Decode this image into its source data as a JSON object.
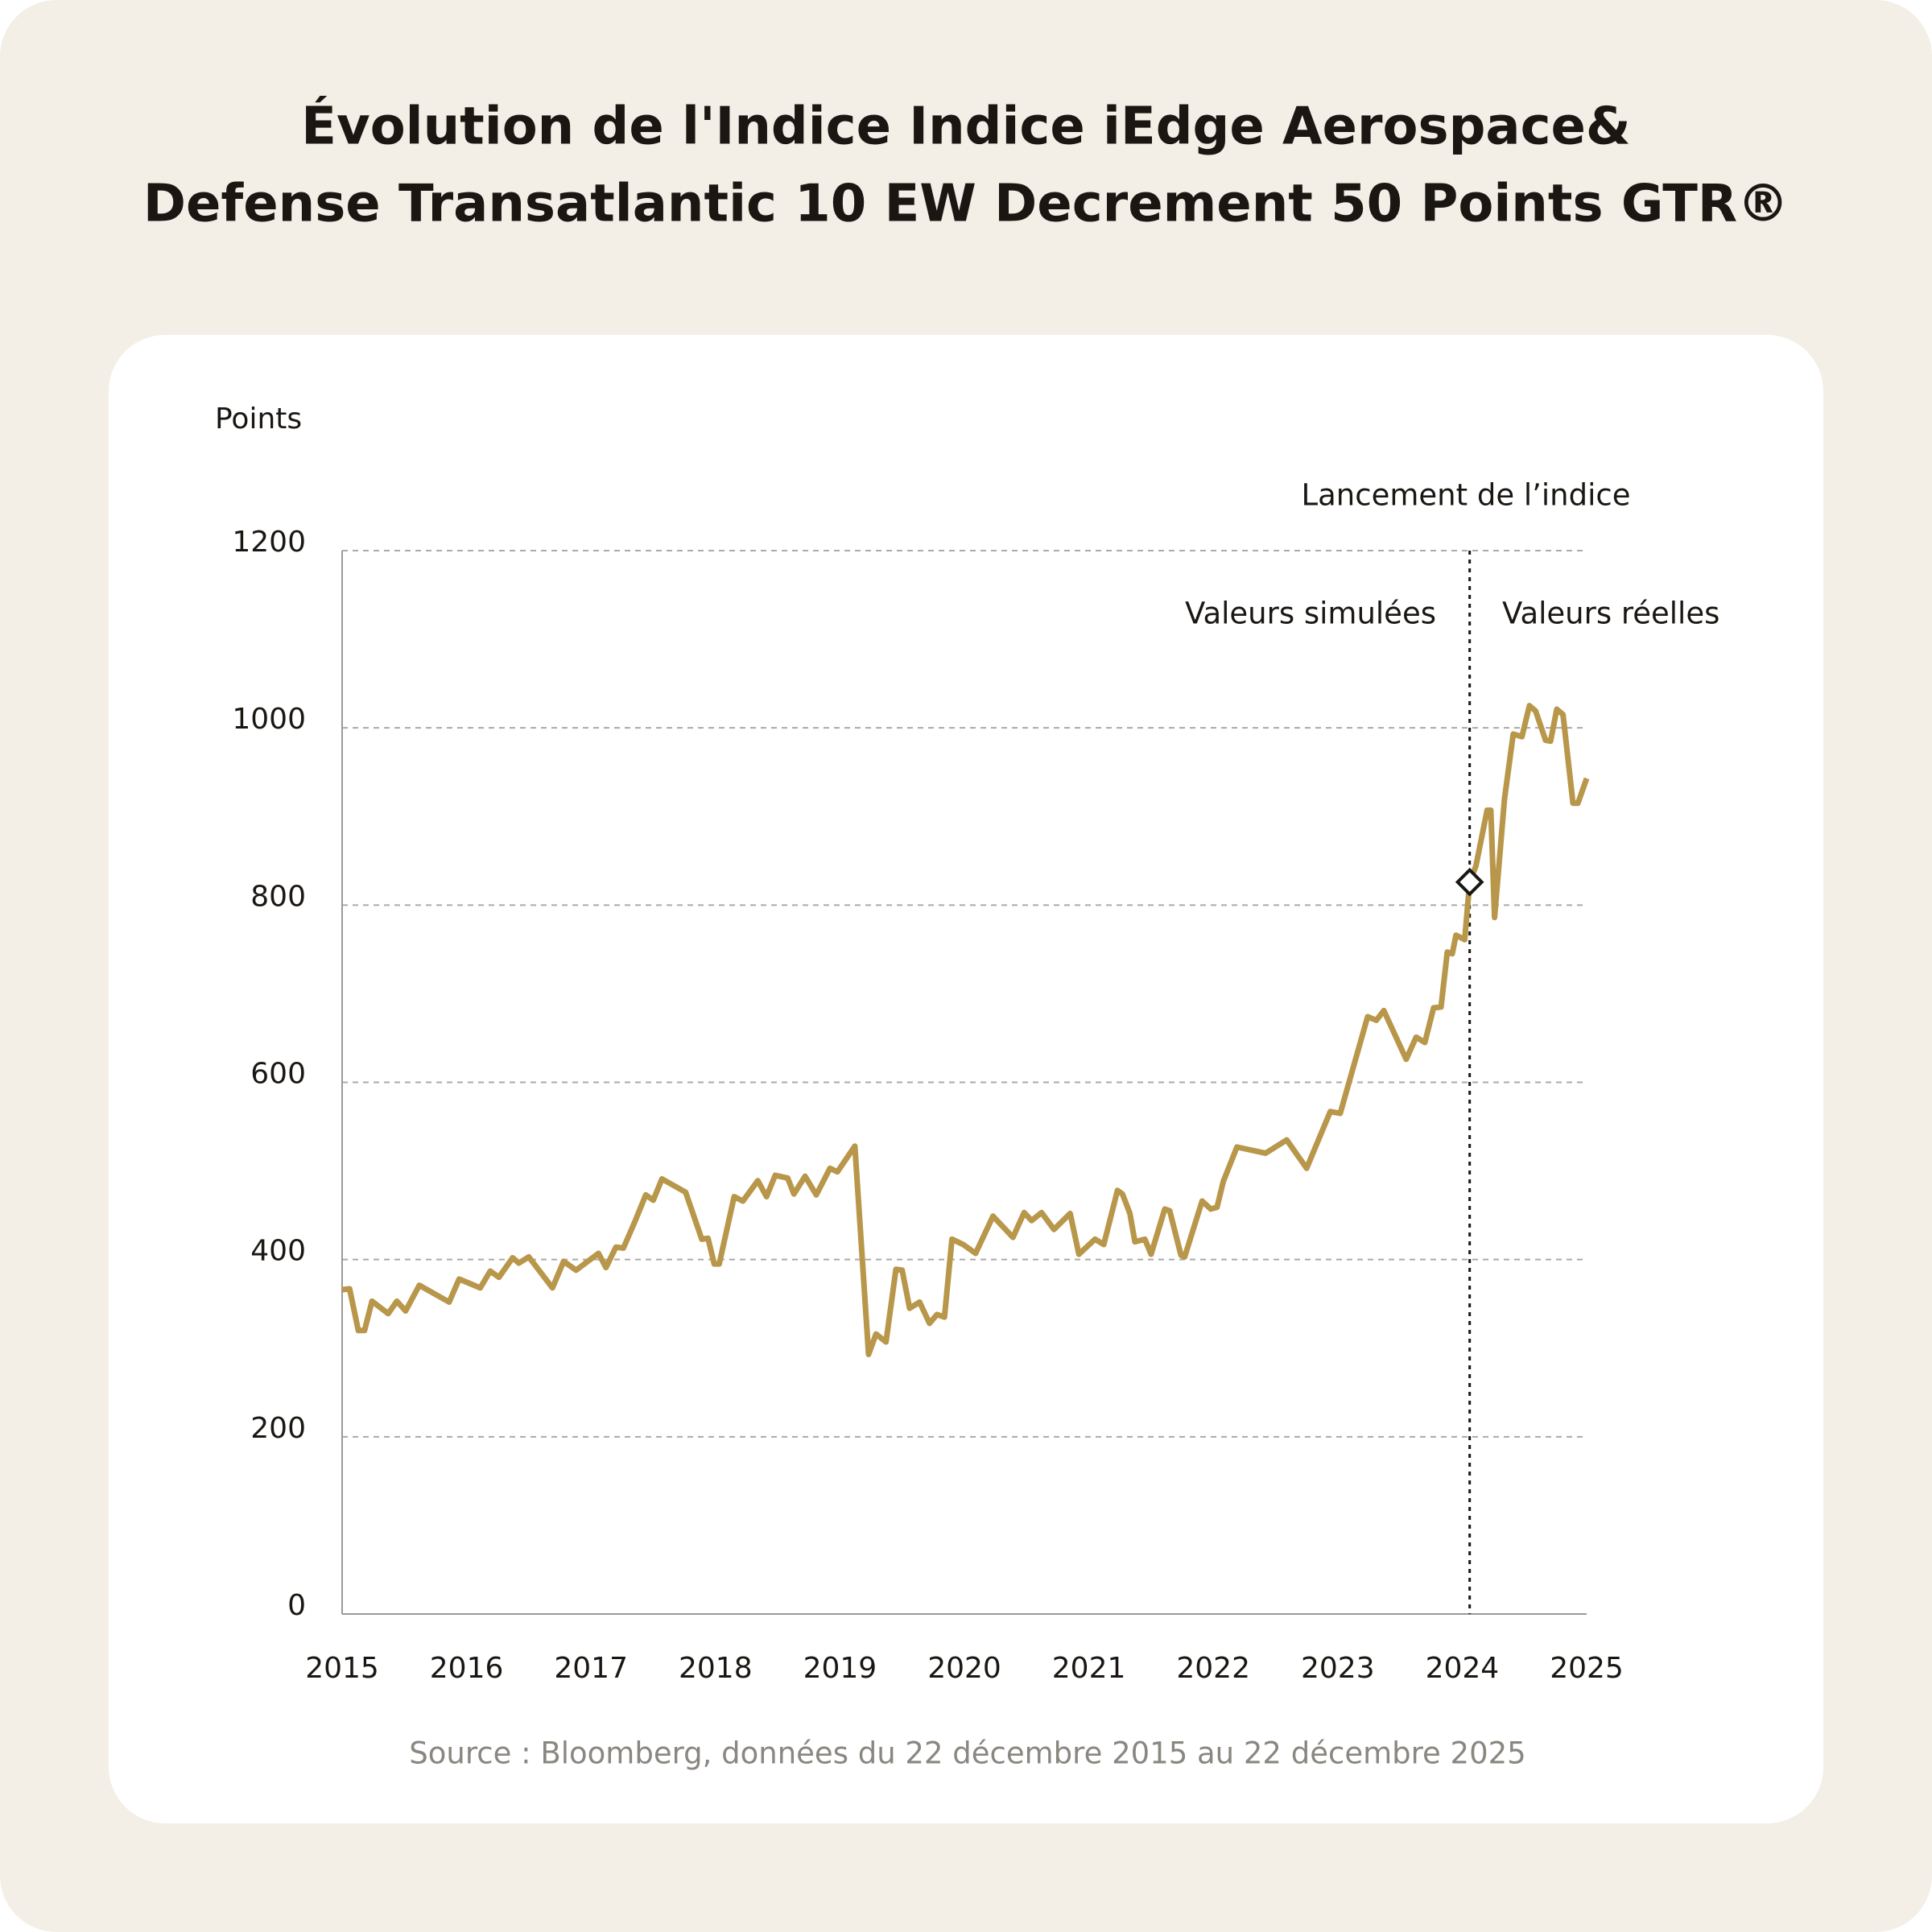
{
  "chart_data": {
    "type": "line",
    "title": [
      "Évolution de l'Indice Indice iEdge Aerospace&",
      "Defense Transatlantic 10 EW Decrement 50 Points GTR®"
    ],
    "y_label": "Points",
    "source": "Source : Bloomberg, données du 22 décembre 2015 au 22 décembre 2025",
    "annotations": {
      "launch_label": "Lancement de l’indice",
      "left_label": "Valeurs simulées",
      "right_label": "Valeurs réelles"
    },
    "launch": {
      "x": 2024.06,
      "value": 826
    },
    "xlim": [
      2015,
      2025
    ],
    "xticks": [
      2015,
      2016,
      2017,
      2018,
      2019,
      2020,
      2021,
      2022,
      2023,
      2024,
      2025
    ],
    "ylim": [
      0,
      1200
    ],
    "yticks": [
      0,
      200,
      400,
      600,
      800,
      1000,
      1200
    ],
    "grid": true,
    "x": [
      2015.0,
      2015.06,
      2015.13,
      2015.18,
      2015.24,
      2015.37,
      2015.44,
      2015.51,
      2015.62,
      2015.86,
      2015.94,
      2016.11,
      2016.19,
      2016.26,
      2016.37,
      2016.42,
      2016.5,
      2016.69,
      2016.78,
      2016.88,
      2017.06,
      2017.12,
      2017.2,
      2017.26,
      2017.35,
      2017.44,
      2017.5,
      2017.57,
      2017.76,
      2017.89,
      2017.94,
      2017.99,
      2018.03,
      2018.15,
      2018.22,
      2018.34,
      2018.41,
      2018.48,
      2018.58,
      2018.63,
      2018.72,
      2018.81,
      2018.92,
      2018.98,
      2019.12,
      2019.23,
      2019.29,
      2019.37,
      2019.45,
      2019.5,
      2019.56,
      2019.64,
      2019.72,
      2019.78,
      2019.84,
      2019.9,
      2019.99,
      2020.09,
      2020.23,
      2020.39,
      2020.48,
      2020.54,
      2020.62,
      2020.72,
      2020.85,
      2020.92,
      2021.05,
      2021.12,
      2021.23,
      2021.27,
      2021.33,
      2021.37,
      2021.45,
      2021.5,
      2021.61,
      2021.65,
      2021.74,
      2021.77,
      2021.91,
      2021.98,
      2022.03,
      2022.08,
      2022.19,
      2022.42,
      2022.59,
      2022.75,
      2022.94,
      2023.02,
      2023.24,
      2023.31,
      2023.37,
      2023.55,
      2023.63,
      2023.7,
      2023.77,
      2023.83,
      2023.88,
      2023.92,
      2023.95,
      2024.02,
      2024.06,
      2024.11,
      2024.2,
      2024.23,
      2024.26,
      2024.34,
      2024.41,
      2024.48,
      2024.54,
      2024.59,
      2024.67,
      2024.71,
      2024.76,
      2024.81,
      2024.89,
      2024.93,
      2025.0
    ],
    "series": [
      {
        "name": "iEdge Aerospace & Defense",
        "color": "#b8964a",
        "values": [
          366,
          367,
          320,
          320,
          353,
          339,
          353,
          342,
          371,
          352,
          378,
          368,
          387,
          380,
          402,
          396,
          403,
          368,
          398,
          388,
          407,
          391,
          414,
          413,
          442,
          473,
          467,
          491,
          476,
          423,
          424,
          395,
          395,
          471,
          466,
          489,
          471,
          495,
          492,
          474,
          494,
          473,
          503,
          499,
          528,
          293,
          316,
          307,
          389,
          388,
          345,
          352,
          328,
          338,
          335,
          423,
          417,
          407,
          449,
          425,
          453,
          444,
          453,
          434,
          452,
          406,
          423,
          417,
          478,
          474,
          452,
          420,
          423,
          406,
          457,
          455,
          405,
          403,
          466,
          457,
          459,
          488,
          527,
          520,
          535,
          503,
          567,
          565,
          674,
          670,
          681,
          626,
          651,
          645,
          684,
          685,
          747,
          745,
          766,
          761,
          826,
          844,
          907,
          907,
          786,
          920,
          993,
          990,
          1025,
          1019,
          986,
          985,
          1021,
          1015,
          915,
          915,
          943
        ]
      }
    ]
  }
}
